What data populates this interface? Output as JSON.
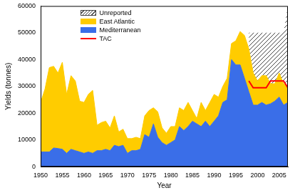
{
  "chart_data": {
    "type": "stacked_area",
    "x_label": "Year",
    "y_label": "Yields (tonnes)",
    "x": [
      1950,
      1951,
      1952,
      1953,
      1954,
      1955,
      1956,
      1957,
      1958,
      1959,
      1960,
      1961,
      1962,
      1963,
      1964,
      1965,
      1966,
      1967,
      1968,
      1969,
      1970,
      1971,
      1972,
      1973,
      1974,
      1975,
      1976,
      1977,
      1978,
      1979,
      1980,
      1981,
      1982,
      1983,
      1984,
      1985,
      1986,
      1987,
      1988,
      1989,
      1990,
      1991,
      1992,
      1993,
      1994,
      1995,
      1996,
      1997,
      1998,
      1999,
      2000,
      2001,
      2002,
      2003,
      2004,
      2005,
      2006,
      2007
    ],
    "series": [
      {
        "name": "Mediterranean",
        "color": "#3a6ee8",
        "type": "area",
        "values": [
          5500,
          5500,
          5500,
          7000,
          6800,
          6500,
          5000,
          6500,
          6000,
          5500,
          5000,
          5500,
          5000,
          6000,
          6000,
          6500,
          6000,
          8000,
          7500,
          8000,
          5000,
          6000,
          6000,
          6500,
          12000,
          11000,
          16000,
          11000,
          9000,
          8000,
          9000,
          10000,
          15000,
          13500,
          15000,
          17000,
          16000,
          15000,
          17000,
          15000,
          17000,
          19000,
          24000,
          25000,
          40000,
          38000,
          38000,
          33000,
          28000,
          23000,
          23000,
          24000,
          23000,
          23500,
          24500,
          26000,
          23000,
          24000
        ]
      },
      {
        "name": "East Atlantic",
        "color": "#ffcc00",
        "type": "area",
        "values": [
          18500,
          23500,
          31500,
          30500,
          28200,
          32500,
          22000,
          27500,
          26000,
          19000,
          19000,
          21500,
          23500,
          9500,
          10500,
          10500,
          8500,
          11000,
          5500,
          6000,
          5500,
          4500,
          5000,
          4000,
          7000,
          10000,
          6000,
          9500,
          5500,
          4500,
          6000,
          5000,
          7000,
          7500,
          9000,
          4000,
          2000,
          9000,
          4000,
          9000,
          10000,
          7000,
          6000,
          8000,
          6000,
          9000,
          12500,
          16000,
          16000,
          12000,
          9000,
          10000,
          11000,
          7500,
          6500,
          9000,
          8000,
          6000
        ]
      },
      {
        "name": "Unreported",
        "color": "#444444",
        "type": "area",
        "line_style": "hatched",
        "values": [
          null,
          null,
          null,
          null,
          null,
          null,
          null,
          null,
          null,
          null,
          null,
          null,
          null,
          null,
          null,
          null,
          null,
          null,
          null,
          null,
          null,
          null,
          null,
          null,
          null,
          null,
          null,
          null,
          null,
          null,
          null,
          null,
          null,
          null,
          null,
          null,
          null,
          null,
          null,
          null,
          null,
          null,
          null,
          null,
          null,
          null,
          null,
          null,
          6000,
          15000,
          18000,
          16000,
          16000,
          19000,
          19000,
          15000,
          19000,
          30000
        ]
      },
      {
        "name": "TAC",
        "color": "#ff0000",
        "type": "line",
        "values": [
          null,
          null,
          null,
          null,
          null,
          null,
          null,
          null,
          null,
          null,
          null,
          null,
          null,
          null,
          null,
          null,
          null,
          null,
          null,
          null,
          null,
          null,
          null,
          null,
          null,
          null,
          null,
          null,
          null,
          null,
          null,
          null,
          null,
          null,
          null,
          null,
          null,
          null,
          null,
          null,
          null,
          null,
          null,
          null,
          null,
          null,
          null,
          null,
          32000,
          29500,
          29500,
          29500,
          29500,
          32000,
          32000,
          32000,
          32000,
          29500
        ]
      }
    ],
    "xlim": [
      1950,
      2007
    ],
    "xticks": [
      1950,
      1955,
      1960,
      1965,
      1970,
      1975,
      1980,
      1985,
      1990,
      1995,
      2000,
      2005
    ],
    "ylim": [
      0,
      60000
    ],
    "yticks": [
      0,
      10000,
      20000,
      30000,
      40000,
      50000,
      60000
    ],
    "stacked": true,
    "grid": false,
    "legend": "upper left"
  }
}
